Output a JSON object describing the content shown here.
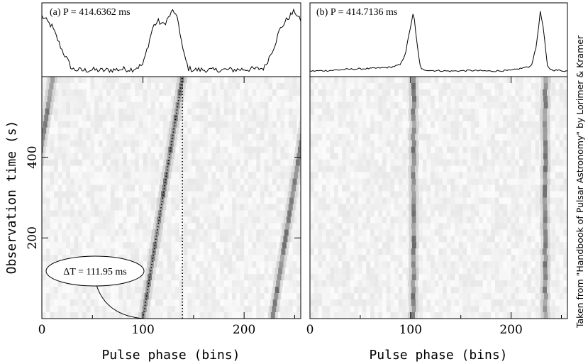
{
  "chart_data": [
    {
      "type": "heatmap",
      "panel": "a",
      "title": "(a) P = 414.6362 ms",
      "xlabel": "Pulse phase (bins)",
      "ylabel": "Observation time (s)",
      "xlim": [
        0,
        256
      ],
      "ylim": [
        0,
        600
      ],
      "xticks": [
        0,
        100,
        200
      ],
      "yticks": [
        200,
        400
      ],
      "profile": {
        "x": [
          0,
          10,
          20,
          30,
          40,
          50,
          60,
          70,
          80,
          90,
          100,
          105,
          110,
          115,
          120,
          125,
          130,
          135,
          140,
          145,
          150,
          160,
          170,
          180,
          190,
          200,
          210,
          220,
          230,
          235,
          240,
          245,
          250,
          255
        ],
        "y": [
          0.88,
          0.72,
          0.35,
          0.05,
          0.03,
          0.04,
          0.03,
          0.04,
          0.05,
          0.05,
          0.12,
          0.42,
          0.72,
          0.8,
          0.74,
          0.85,
          0.98,
          0.78,
          0.3,
          0.06,
          0.04,
          0.04,
          0.03,
          0.04,
          0.04,
          0.05,
          0.05,
          0.07,
          0.42,
          0.66,
          0.78,
          0.88,
          0.96,
          0.82
        ]
      },
      "drift": {
        "start_bin": 100,
        "end_bin": 139,
        "wrap_start_bin": 228,
        "end_time": 600
      },
      "annotation": "ΔT = 111.95 ms"
    },
    {
      "type": "heatmap",
      "panel": "b",
      "title": "(b) P = 414.7136 ms",
      "xlabel": "Pulse phase (bins)",
      "ylabel": "",
      "xlim": [
        0,
        256
      ],
      "ylim": [
        0,
        600
      ],
      "xticks": [
        0,
        100,
        200
      ],
      "profile": {
        "x": [
          0,
          20,
          40,
          60,
          80,
          90,
          95,
          100,
          103,
          106,
          110,
          120,
          140,
          160,
          180,
          200,
          215,
          220,
          225,
          229,
          232,
          236,
          240,
          256
        ],
        "y": [
          0.02,
          0.03,
          0.05,
          0.06,
          0.08,
          0.12,
          0.3,
          0.72,
          0.95,
          0.5,
          0.05,
          0.03,
          0.02,
          0.03,
          0.02,
          0.03,
          0.08,
          0.1,
          0.4,
          0.95,
          0.7,
          0.1,
          0.04,
          0.02
        ]
      },
      "pulse_bins": [
        103,
        234
      ]
    }
  ],
  "credit": "Taken from \"Handbook of Pulsar Astronomy\" by Lorimer & Kramer",
  "colors": {
    "ink": "#000000",
    "background": "#ffffff",
    "pulse": "#1a1a1a"
  }
}
